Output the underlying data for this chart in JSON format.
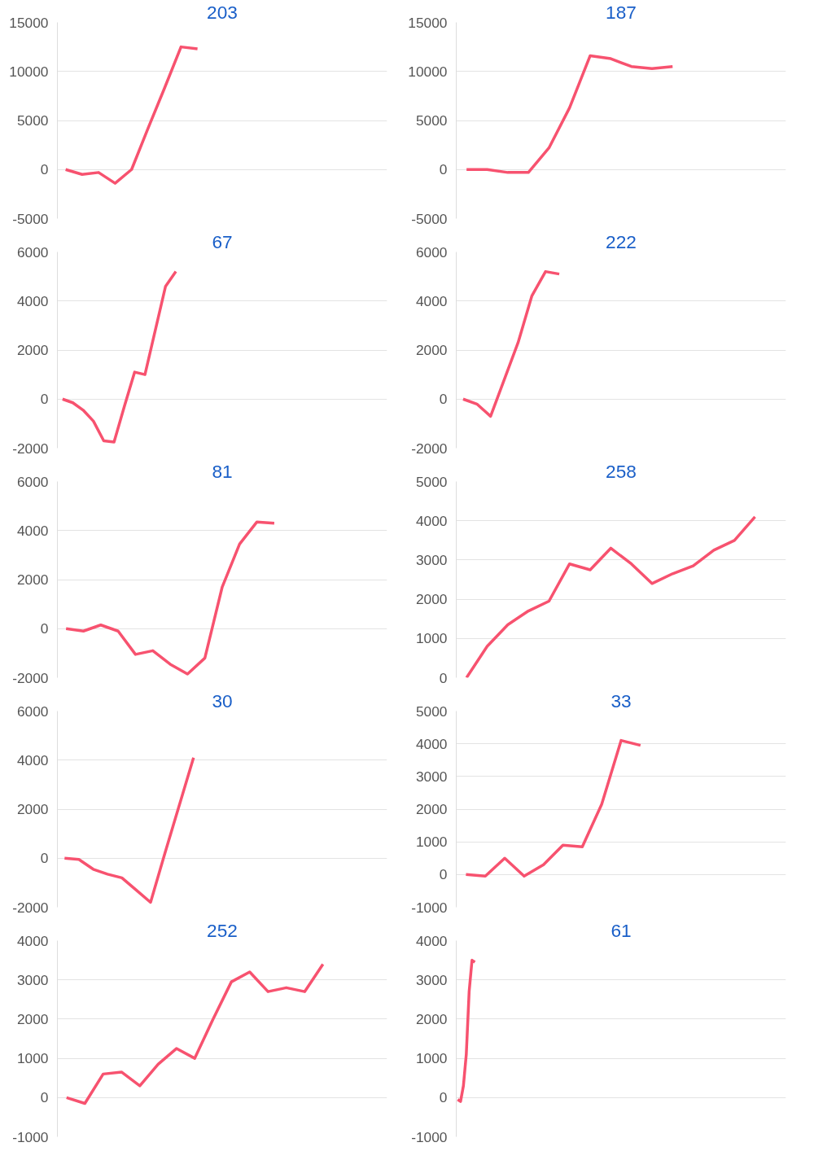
{
  "chart_data": [
    {
      "type": "line",
      "title": "203",
      "tick_labels": "y",
      "grid": "y",
      "ylim": [
        -5000,
        15000
      ],
      "yticks": [
        -5000,
        0,
        5000,
        10000,
        15000
      ],
      "categories": [
        null,
        null,
        null,
        null,
        null,
        null,
        null,
        null,
        null,
        null,
        null,
        null,
        null,
        null,
        null,
        null,
        null,
        null,
        null,
        null
      ],
      "series": [
        {
          "color": "#f7526f",
          "values": [
            0,
            -500,
            -300,
            -1400,
            0,
            4200,
            8300,
            12500,
            12300,
            null,
            null,
            null,
            null,
            null,
            null,
            null,
            null,
            null,
            null,
            null
          ]
        }
      ]
    },
    {
      "type": "line",
      "title": "187",
      "tick_labels": "y",
      "grid": "y",
      "ylim": [
        -5000,
        15000
      ],
      "yticks": [
        -5000,
        0,
        5000,
        10000,
        15000
      ],
      "categories": [
        null,
        null,
        null,
        null,
        null,
        null,
        null,
        null,
        null,
        null,
        null,
        null,
        null,
        null,
        null,
        null
      ],
      "series": [
        {
          "color": "#f7526f",
          "values": [
            0,
            0,
            -300,
            -300,
            2200,
            6300,
            11600,
            11300,
            10500,
            10300,
            10500,
            null,
            null,
            null,
            null,
            null
          ]
        }
      ]
    },
    {
      "type": "line",
      "title": "67",
      "tick_labels": "y",
      "grid": "y",
      "ylim": [
        -2000,
        6000
      ],
      "yticks": [
        -2000,
        0,
        2000,
        4000,
        6000
      ],
      "categories": [
        null,
        null,
        null,
        null,
        null,
        null,
        null,
        null,
        null,
        null,
        null,
        null,
        null,
        null,
        null,
        null,
        null,
        null,
        null,
        null,
        null,
        null,
        null,
        null,
        null,
        null,
        null,
        null,
        null,
        null,
        null,
        null
      ],
      "series": [
        {
          "color": "#f7526f",
          "values": [
            0,
            -150,
            -450,
            -900,
            -1700,
            -1750,
            -300,
            1100,
            1000,
            2800,
            4600,
            5200,
            null,
            null,
            null,
            null,
            null,
            null,
            null,
            null,
            null,
            null,
            null,
            null,
            null,
            null,
            null,
            null,
            null,
            null,
            null,
            null
          ]
        }
      ]
    },
    {
      "type": "line",
      "title": "222",
      "tick_labels": "y",
      "grid": "y",
      "ylim": [
        -2000,
        6000
      ],
      "yticks": [
        -2000,
        0,
        2000,
        4000,
        6000
      ],
      "categories": [
        null,
        null,
        null,
        null,
        null,
        null,
        null,
        null,
        null,
        null,
        null,
        null,
        null,
        null,
        null,
        null,
        null,
        null,
        null,
        null,
        null,
        null,
        null,
        null
      ],
      "series": [
        {
          "color": "#f7526f",
          "values": [
            0,
            -200,
            -700,
            800,
            2300,
            4200,
            5200,
            5100,
            null,
            null,
            null,
            null,
            null,
            null,
            null,
            null,
            null,
            null,
            null,
            null,
            null,
            null,
            null,
            null
          ]
        }
      ]
    },
    {
      "type": "line",
      "title": "81",
      "tick_labels": "y",
      "grid": "y",
      "ylim": [
        -2000,
        6000
      ],
      "yticks": [
        -2000,
        0,
        2000,
        4000,
        6000
      ],
      "categories": [
        null,
        null,
        null,
        null,
        null,
        null,
        null,
        null,
        null,
        null,
        null,
        null,
        null,
        null,
        null,
        null,
        null,
        null,
        null
      ],
      "series": [
        {
          "color": "#f7526f",
          "values": [
            0,
            -100,
            150,
            -100,
            -1050,
            -900,
            -1450,
            -1850,
            -1200,
            1700,
            3450,
            4350,
            4300,
            null,
            null,
            null,
            null,
            null,
            null
          ]
        }
      ]
    },
    {
      "type": "line",
      "title": "258",
      "tick_labels": "y",
      "grid": "y",
      "ylim": [
        0,
        5000
      ],
      "yticks": [
        0,
        1000,
        2000,
        3000,
        4000,
        5000
      ],
      "categories": [
        null,
        null,
        null,
        null,
        null,
        null,
        null,
        null,
        null,
        null,
        null,
        null,
        null,
        null,
        null,
        null
      ],
      "series": [
        {
          "color": "#f7526f",
          "values": [
            0,
            800,
            1350,
            1700,
            1950,
            2900,
            2750,
            3300,
            2900,
            2400,
            2650,
            2850,
            3250,
            3500,
            4100,
            null
          ]
        }
      ]
    },
    {
      "type": "line",
      "title": "30",
      "tick_labels": "y",
      "grid": "y",
      "ylim": [
        -2000,
        6000
      ],
      "yticks": [
        -2000,
        0,
        2000,
        4000,
        6000
      ],
      "categories": [
        null,
        null,
        null,
        null,
        null,
        null,
        null,
        null,
        null,
        null,
        null,
        null,
        null,
        null,
        null,
        null,
        null,
        null,
        null,
        null,
        null,
        null,
        null
      ],
      "series": [
        {
          "color": "#f7526f",
          "values": [
            0,
            -50,
            -450,
            -650,
            -800,
            -1300,
            -1800,
            200,
            2150,
            4100,
            null,
            null,
            null,
            null,
            null,
            null,
            null,
            null,
            null,
            null,
            null,
            null,
            null
          ]
        }
      ]
    },
    {
      "type": "line",
      "title": "33",
      "tick_labels": "y",
      "grid": "y",
      "ylim": [
        -1000,
        5000
      ],
      "yticks": [
        -1000,
        0,
        1000,
        2000,
        3000,
        4000,
        5000
      ],
      "categories": [
        null,
        null,
        null,
        null,
        null,
        null,
        null,
        null,
        null,
        null,
        null,
        null,
        null,
        null,
        null,
        null,
        null
      ],
      "series": [
        {
          "color": "#f7526f",
          "values": [
            0,
            -50,
            500,
            -50,
            300,
            900,
            850,
            2150,
            4100,
            3950,
            null,
            null,
            null,
            null,
            null,
            null,
            null
          ]
        }
      ]
    },
    {
      "type": "line",
      "title": "252",
      "tick_labels": "y",
      "grid": "y",
      "ylim": [
        -1000,
        4000
      ],
      "yticks": [
        -1000,
        0,
        1000,
        2000,
        3000,
        4000
      ],
      "categories": [
        null,
        null,
        null,
        null,
        null,
        null,
        null,
        null,
        null,
        null,
        null,
        null,
        null,
        null,
        null,
        null,
        null,
        null
      ],
      "series": [
        {
          "color": "#f7526f",
          "values": [
            0,
            -150,
            600,
            650,
            300,
            850,
            1250,
            1000,
            2000,
            2950,
            3200,
            2700,
            2800,
            2700,
            3400,
            null,
            null,
            null
          ]
        }
      ]
    },
    {
      "type": "line",
      "title": "61",
      "tick_labels": "y",
      "grid": "y",
      "ylim": [
        -1000,
        4000
      ],
      "yticks": [
        -1000,
        0,
        1000,
        2000,
        3000,
        4000
      ],
      "categories": [
        null,
        null,
        null,
        null,
        null,
        null,
        null,
        null,
        null,
        null,
        null,
        null,
        null,
        null,
        null,
        null,
        null,
        null,
        null,
        null,
        null,
        null,
        null,
        null,
        null,
        null,
        null,
        null,
        null,
        null,
        null,
        null,
        null,
        null,
        null,
        null,
        null,
        null,
        null,
        null,
        null,
        null,
        null,
        null,
        null,
        null,
        null,
        null,
        null,
        null,
        null,
        null,
        null,
        null,
        null,
        null,
        null,
        null,
        null,
        null,
        null,
        null,
        null,
        null,
        null,
        null,
        null,
        null,
        null,
        null,
        null,
        null,
        null,
        null,
        null,
        null,
        null,
        null,
        null,
        null,
        null,
        null,
        null,
        null,
        null,
        null,
        null,
        null,
        null,
        null,
        null,
        null,
        null,
        null,
        null,
        null,
        null,
        null,
        null,
        null,
        null,
        null,
        null,
        null,
        null,
        null,
        null,
        null,
        null,
        null,
        null,
        null,
        null,
        null,
        null
      ],
      "series": [
        {
          "color": "#f7526f",
          "values": [
            -50,
            -100,
            300,
            1100,
            2700,
            3500,
            3450,
            null,
            null,
            null,
            null,
            null,
            null,
            null,
            null,
            null,
            null,
            null,
            null,
            null,
            null,
            null,
            null,
            null,
            null,
            null,
            null,
            null,
            null,
            null,
            null,
            null,
            null,
            null,
            null,
            null,
            null,
            null,
            null,
            null,
            null,
            null,
            null,
            null,
            null,
            null,
            null,
            null,
            null,
            null,
            null,
            null,
            null,
            null,
            null,
            null,
            null,
            null,
            null,
            null,
            null,
            null,
            null,
            null,
            null,
            null,
            null,
            null,
            null,
            null,
            null,
            null,
            null,
            null,
            null,
            null,
            null,
            null,
            null,
            null,
            null,
            null,
            null,
            null,
            null,
            null,
            null,
            null,
            null,
            null,
            null,
            null,
            null,
            null,
            null,
            null,
            null,
            null,
            null,
            null,
            null,
            null,
            null,
            null,
            null,
            null,
            null,
            null,
            null,
            null,
            null,
            null,
            null,
            null,
            null
          ]
        }
      ]
    }
  ]
}
